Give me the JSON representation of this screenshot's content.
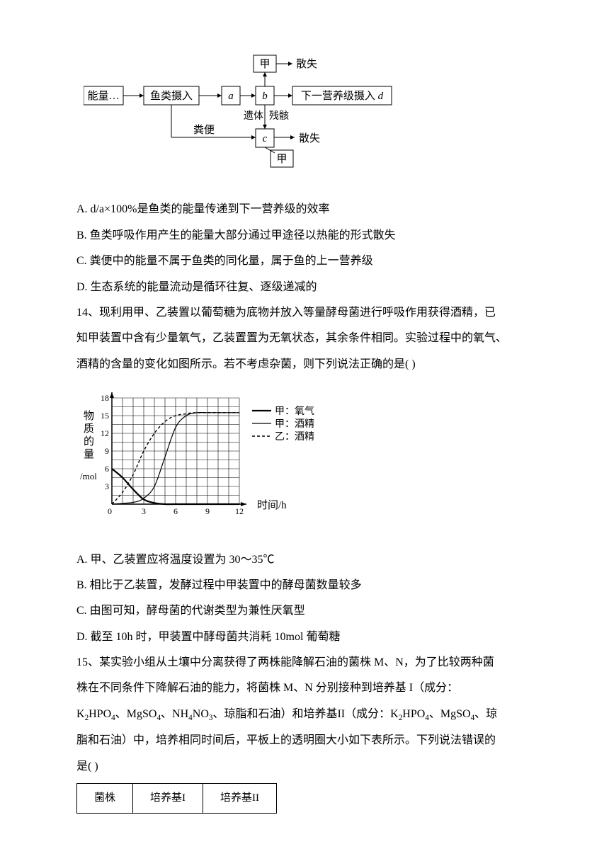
{
  "diagram1": {
    "energy_label": "能量",
    "fish_intake": "鱼类摄入",
    "box_a": "a",
    "jia_top": "甲",
    "sanshi_top": "散失",
    "box_b": "b",
    "next_level": "下一营养级摄入",
    "next_level_italic": "d",
    "yiti": "遗体",
    "canhai": "残骸",
    "fenbian": "粪便",
    "box_c": "c",
    "jia_bottom": "甲",
    "sanshi_bottom": "散失",
    "box_color": "#ffffff",
    "border_color": "#000000",
    "text_color": "#000000",
    "fontsize": 15
  },
  "options13": {
    "a": "A. d/a×100%是鱼类的能量传递到下一营养级的效率",
    "b": "B. 鱼类呼吸作用产生的能量大部分通过甲途径以热能的形式散失",
    "c": "C. 粪便中的能量不属于鱼类的同化量，属于鱼的上一营养级",
    "d": "D. 生态系统的能量流动是循环往复、逐级递减的"
  },
  "q14": {
    "intro1": "14、现利用甲、乙装置以葡萄糖为底物并放入等量酵母菌进行呼吸作用获得酒精，已",
    "intro2": "知甲装置中含有少量氧气，乙装置置为无氧状态，其余条件相同。实验过程中的氧气、",
    "intro3": "酒精的含量的变化如图所示。若不考虑杂菌，则下列说法正确的是(  )"
  },
  "chart14": {
    "type": "line",
    "xlabel": "时间/h",
    "ylabel_line1": "物",
    "ylabel_line2": "质",
    "ylabel_line3": "的",
    "ylabel_line4": "量",
    "ylabel_unit": "/mol",
    "xlim": [
      0,
      12
    ],
    "ylim": [
      0,
      18
    ],
    "xticks": [
      0,
      3,
      6,
      9,
      12
    ],
    "yticks": [
      0,
      3,
      6,
      9,
      12,
      15,
      18
    ],
    "legend": [
      "甲：氧气",
      "甲：酒精",
      "乙：酒精"
    ],
    "series": {
      "jia_oxygen": {
        "style": "solid_thick",
        "points": [
          [
            0,
            6
          ],
          [
            1,
            4.5
          ],
          [
            2,
            2.5
          ],
          [
            3,
            0.8
          ],
          [
            4,
            0.2
          ],
          [
            5,
            0
          ],
          [
            6,
            0
          ],
          [
            12,
            0
          ]
        ]
      },
      "jia_alcohol": {
        "style": "solid_thin",
        "points": [
          [
            0,
            0
          ],
          [
            2,
            0.3
          ],
          [
            3,
            1
          ],
          [
            4,
            3
          ],
          [
            5,
            8
          ],
          [
            6,
            13
          ],
          [
            7,
            15
          ],
          [
            8,
            15.5
          ],
          [
            9,
            15.5
          ],
          [
            12,
            15.5
          ]
        ]
      },
      "yi_alcohol": {
        "style": "dashed",
        "points": [
          [
            0,
            0
          ],
          [
            1,
            2
          ],
          [
            2,
            5
          ],
          [
            3,
            9
          ],
          [
            4,
            12
          ],
          [
            5,
            14
          ],
          [
            6,
            15
          ],
          [
            7,
            15.3
          ],
          [
            8,
            15.5
          ],
          [
            12,
            15.5
          ]
        ]
      }
    },
    "grid_color": "#000000",
    "line_color": "#000000",
    "background": "#ffffff",
    "fontsize": 14
  },
  "options14": {
    "a": "A. 甲、乙装置应将温度设置为 30～35℃",
    "b": "B. 相比于乙装置，发酵过程中甲装置中的酵母菌数量较多",
    "c": "C. 由图可知，酵母菌的代谢类型为兼性厌氧型",
    "d": "D. 截至 10h 时，甲装置中酵母菌共消耗 10mol 葡萄糖"
  },
  "q15": {
    "line1": "15、某实验小组从土壤中分离获得了两株能降解石油的菌株 M、N，为了比较两种菌",
    "line2": "株在不同条件下降解石油的能力，将菌株 M、N 分别接种到培养基 I（成分：",
    "line3_prefix": "K",
    "line3_s1": "2",
    "line3_p1": "HPO",
    "line3_s2": "4",
    "line3_p2": "、MgSO",
    "line3_s3": "4",
    "line3_p3": "、NH",
    "line3_s4": "4",
    "line3_p4": "NO",
    "line3_s5": "3",
    "line3_p5": "、琼脂和石油）和培养基II（成分：K",
    "line3_s6": "2",
    "line3_p6": "HPO",
    "line3_s7": "4",
    "line3_p7": "、MgSO",
    "line3_s8": "4",
    "line3_p8": "、琼",
    "line4": "脂和石油）中，培养相同时间后，平板上的透明圈大小如下表所示。下列说法错误的",
    "line5": "是(  )"
  },
  "table15": {
    "headers": [
      "菌株",
      "培养基I",
      "培养基II"
    ]
  }
}
